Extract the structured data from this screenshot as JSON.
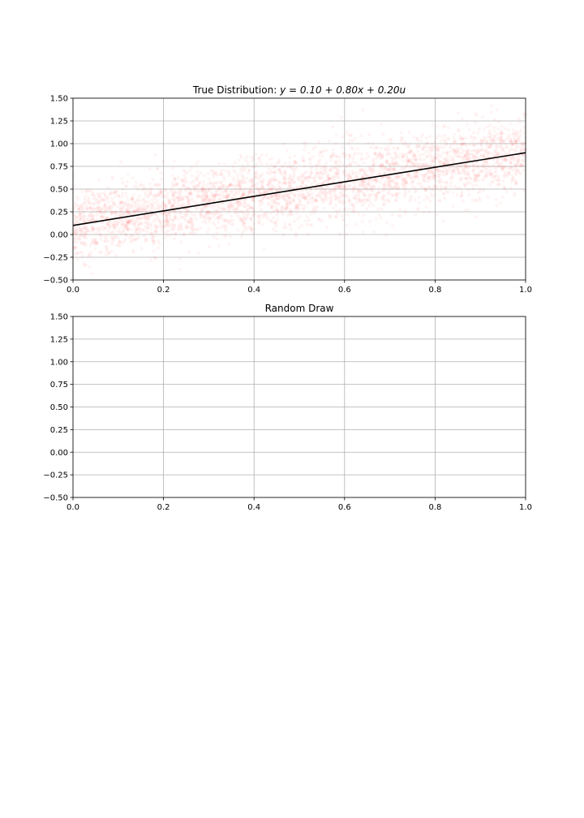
{
  "chart_data": [
    {
      "type": "scatter",
      "title_prefix": "True Distribution: ",
      "title_math": "y = 0.10 + 0.80x + 0.20u",
      "xlim": [
        0,
        1
      ],
      "ylim": [
        -0.5,
        1.5
      ],
      "xticks": [
        "0.0",
        "0.2",
        "0.4",
        "0.6",
        "0.8",
        "1.0"
      ],
      "yticks": [
        "1.50",
        "1.25",
        "1.00",
        "0.75",
        "0.50",
        "0.25",
        "0.00",
        "−0.25",
        "−0.50"
      ],
      "grid": true,
      "line": {
        "intercept": 0.1,
        "slope": 0.8,
        "color": "#000000"
      },
      "scatter": {
        "noise_sd": 0.2,
        "color": "#ff0000"
      }
    },
    {
      "type": "scatter",
      "title": "Random Draw",
      "xlim": [
        0,
        1
      ],
      "ylim": [
        -0.5,
        1.5
      ],
      "xticks": [
        "0.0",
        "0.2",
        "0.4",
        "0.6",
        "0.8",
        "1.0"
      ],
      "yticks": [
        "1.50",
        "1.25",
        "1.00",
        "0.75",
        "0.50",
        "0.25",
        "0.00",
        "−0.25",
        "−0.50"
      ],
      "grid": true
    }
  ]
}
